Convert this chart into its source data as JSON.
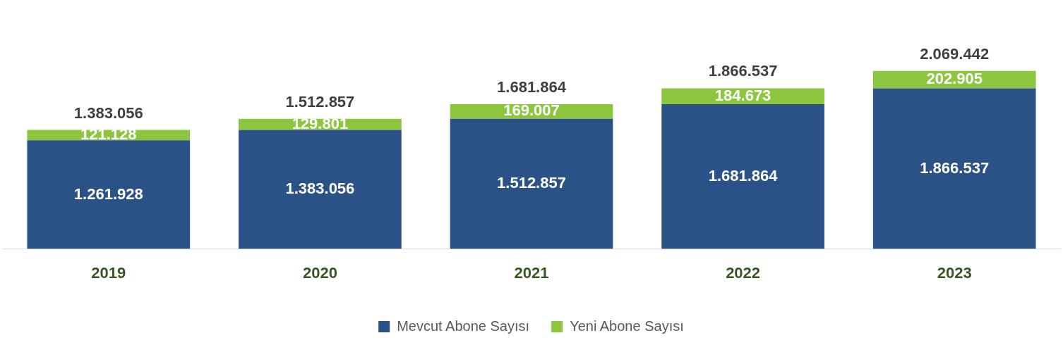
{
  "chart_data": {
    "type": "bar",
    "stacked": true,
    "categories": [
      "2019",
      "2020",
      "2021",
      "2022",
      "2023"
    ],
    "series": [
      {
        "name": "Mevcut Abone Sayısı",
        "color": "#2a5286",
        "values": [
          1261928,
          1383056,
          1512857,
          1681864,
          1866537
        ],
        "value_labels": [
          "1.261.928",
          "1.383.056",
          "1.512.857",
          "1.681.864",
          "1.866.537"
        ]
      },
      {
        "name": "Yeni Abone Sayısı",
        "color": "#8cc63f",
        "values": [
          121128,
          129801,
          169007,
          184673,
          202905
        ],
        "value_labels": [
          "121.128",
          "129.801",
          "169.007",
          "184.673",
          "202.905"
        ]
      }
    ],
    "totals": [
      "1.383.056",
      "1.512.857",
      "1.681.864",
      "1.866.537",
      "2.069.442"
    ],
    "legend": "bottom"
  }
}
